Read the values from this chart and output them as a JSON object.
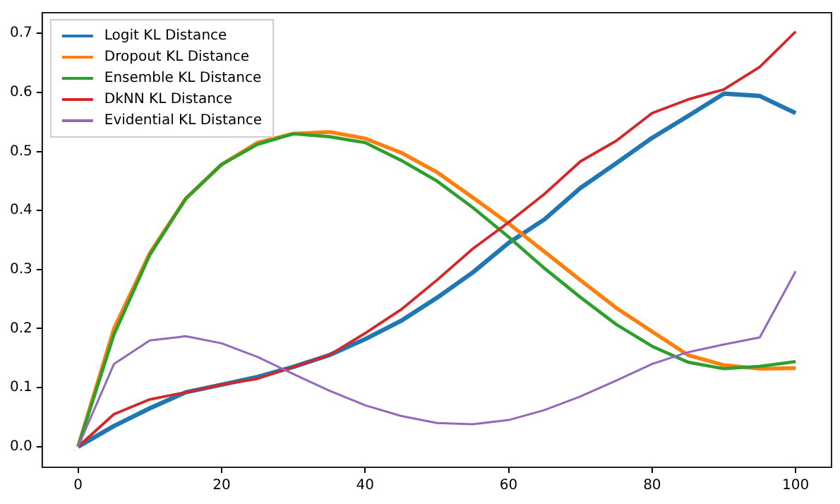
{
  "chart_data": {
    "type": "line",
    "x": [
      0,
      5,
      10,
      15,
      20,
      25,
      30,
      35,
      40,
      45,
      50,
      55,
      60,
      65,
      70,
      75,
      80,
      85,
      90,
      95,
      100
    ],
    "series": [
      {
        "name": "Logit KL Distance",
        "color": "#1f77b4",
        "values": [
          0,
          0.035,
          0.065,
          0.092,
          0.105,
          0.118,
          0.135,
          0.155,
          0.182,
          0.213,
          0.252,
          0.295,
          0.345,
          0.385,
          0.438,
          0.48,
          0.523,
          0.56,
          0.598,
          0.594,
          0.565
        ]
      },
      {
        "name": "Dropout KL Distance",
        "color": "#ff7f0e",
        "values": [
          0,
          0.2,
          0.328,
          0.42,
          0.478,
          0.515,
          0.53,
          0.533,
          0.522,
          0.498,
          0.465,
          0.422,
          0.378,
          0.33,
          0.282,
          0.235,
          0.195,
          0.155,
          0.138,
          0.132,
          0.133
        ]
      },
      {
        "name": "Ensemble KL Distance",
        "color": "#2ca02c",
        "values": [
          0,
          0.19,
          0.325,
          0.42,
          0.478,
          0.512,
          0.53,
          0.525,
          0.515,
          0.485,
          0.45,
          0.405,
          0.355,
          0.302,
          0.253,
          0.207,
          0.17,
          0.143,
          0.132,
          0.136,
          0.144
        ]
      },
      {
        "name": "DkNN KL Distance",
        "color": "#d62728",
        "values": [
          0,
          0.055,
          0.08,
          0.092,
          0.105,
          0.115,
          0.135,
          0.155,
          0.192,
          0.232,
          0.282,
          0.335,
          0.38,
          0.428,
          0.483,
          0.518,
          0.565,
          0.588,
          0.605,
          0.643,
          0.703
        ]
      },
      {
        "name": "Evidential KL Distance",
        "color": "#9467bd",
        "values": [
          0,
          0.14,
          0.18,
          0.187,
          0.175,
          0.152,
          0.123,
          0.095,
          0.07,
          0.052,
          0.04,
          0.038,
          0.045,
          0.062,
          0.085,
          0.112,
          0.14,
          0.16,
          0.173,
          0.185,
          0.297
        ]
      }
    ],
    "xlim": [
      -5,
      105
    ],
    "xticks": [
      0,
      20,
      40,
      60,
      80,
      100
    ],
    "ylim": [
      -0.035,
      0.735
    ],
    "yticks": [
      {
        "value": 0,
        "label": "0.0"
      },
      {
        "value": 0.1,
        "label": "0.1"
      },
      {
        "value": 0.2,
        "label": "0.2"
      },
      {
        "value": 0.3,
        "label": "0.3"
      },
      {
        "value": 0.4,
        "label": "0.4"
      },
      {
        "value": 0.5,
        "label": "0.5"
      },
      {
        "value": 0.6,
        "label": "0.6"
      },
      {
        "value": 0.7,
        "label": "0.7"
      }
    ],
    "grid": false,
    "legend": "top left",
    "marker": "none",
    "line_style": "solid"
  }
}
